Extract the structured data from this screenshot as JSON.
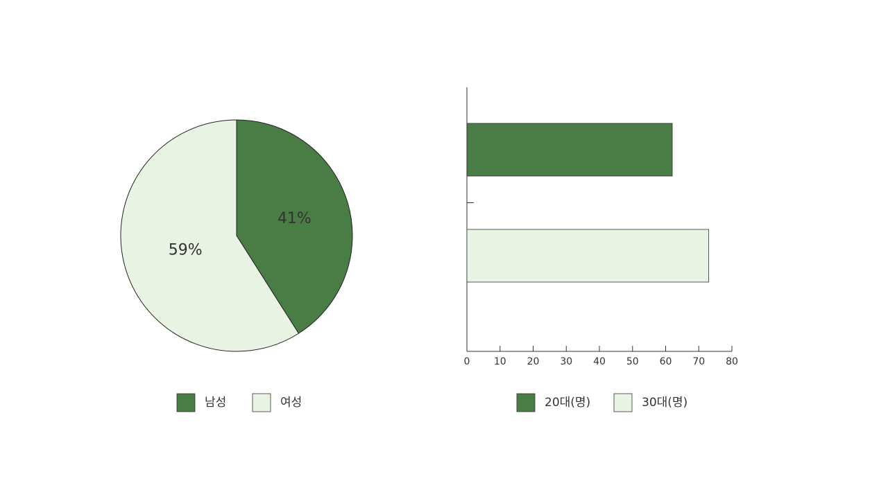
{
  "chart_data": [
    {
      "type": "pie",
      "categories": [
        "남성",
        "여성"
      ],
      "values": [
        41,
        59
      ],
      "value_labels": [
        "41%",
        "59%"
      ],
      "colors": [
        "#4a7c45",
        "#e8f3e3"
      ],
      "label_colors": [
        "#ffffff",
        "#555555"
      ],
      "legend": "bottom"
    },
    {
      "type": "barh",
      "categories": [
        null
      ],
      "series": [
        {
          "name": "20대(명)",
          "color": "#4a7c45",
          "values": [
            62
          ]
        },
        {
          "name": "30대(명)",
          "color": "#e8f3e3",
          "values": [
            73
          ]
        }
      ],
      "xlim": [
        0,
        80
      ],
      "xticks": [
        0,
        10,
        20,
        30,
        40,
        50,
        60,
        70,
        80
      ],
      "legend": "bottom"
    }
  ]
}
